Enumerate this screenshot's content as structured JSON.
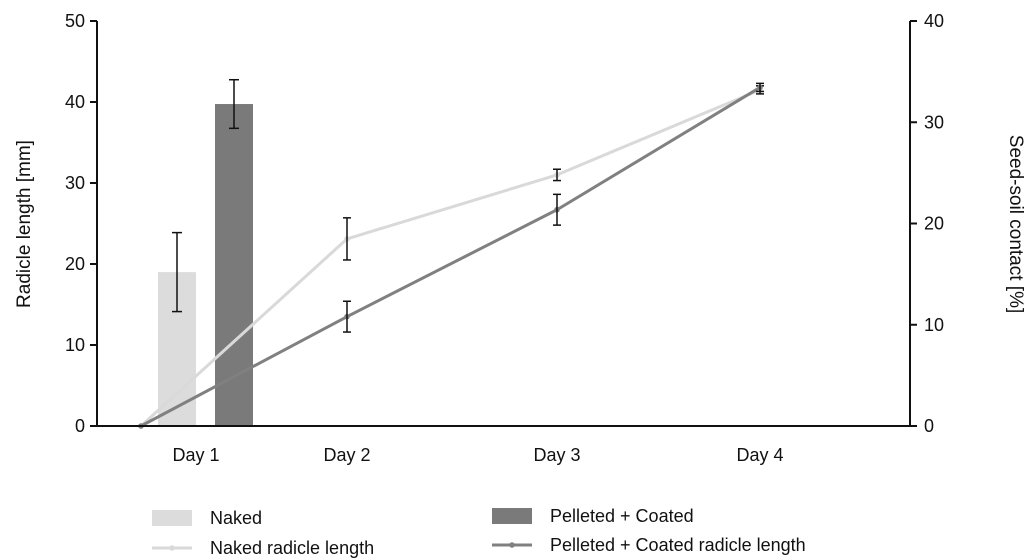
{
  "chart_data": {
    "type": "bar",
    "categories": [
      "Day 1",
      "Day 2",
      "Day 3",
      "Day 4"
    ],
    "ylabel": "Radicle length [mm]",
    "ylim": [
      0,
      50
    ],
    "y_ticks": [
      0,
      10,
      20,
      30,
      40,
      50
    ],
    "y2label": "Seed-soil contact [%]",
    "y2lim": [
      0,
      40
    ],
    "y2_ticks": [
      0,
      10,
      20,
      30,
      40
    ],
    "grid": false,
    "legend_position": "bottom",
    "bars": [
      {
        "name": "Naked",
        "category": "Day 1",
        "value": 15.2,
        "error": 3.9,
        "axis": "right",
        "color": "#dcdcdc"
      },
      {
        "name": "Pelleted + Coated",
        "category": "Day 1",
        "value": 31.8,
        "error": 2.4,
        "axis": "right",
        "color": "#7a7a7a"
      }
    ],
    "series": [
      {
        "name": "Naked radicle length",
        "type": "line",
        "axis": "left",
        "color": "#d9d9d9",
        "x": [
          0,
          "Day 2",
          "Day 3",
          "Day 4"
        ],
        "values": [
          0,
          23.1,
          31.0,
          41.5
        ],
        "errors": [
          0,
          2.6,
          0.7,
          0.5
        ]
      },
      {
        "name": "Pelleted + Coated radicle length",
        "type": "line",
        "axis": "left",
        "color": "#808080",
        "x": [
          0,
          "Day 2",
          "Day 3",
          "Day 4"
        ],
        "values": [
          0,
          13.5,
          26.7,
          41.8
        ],
        "errors": [
          0,
          1.9,
          1.9,
          0.5
        ]
      }
    ]
  },
  "legend": {
    "items": [
      {
        "label": "Naked",
        "kind": "bar",
        "color": "#dcdcdc"
      },
      {
        "label": "Naked radicle length",
        "kind": "line",
        "color": "#d9d9d9"
      },
      {
        "label": "Pelleted + Coated",
        "kind": "bar",
        "color": "#7a7a7a"
      },
      {
        "label": "Pelleted + Coated radicle length",
        "kind": "line",
        "color": "#808080"
      }
    ]
  }
}
